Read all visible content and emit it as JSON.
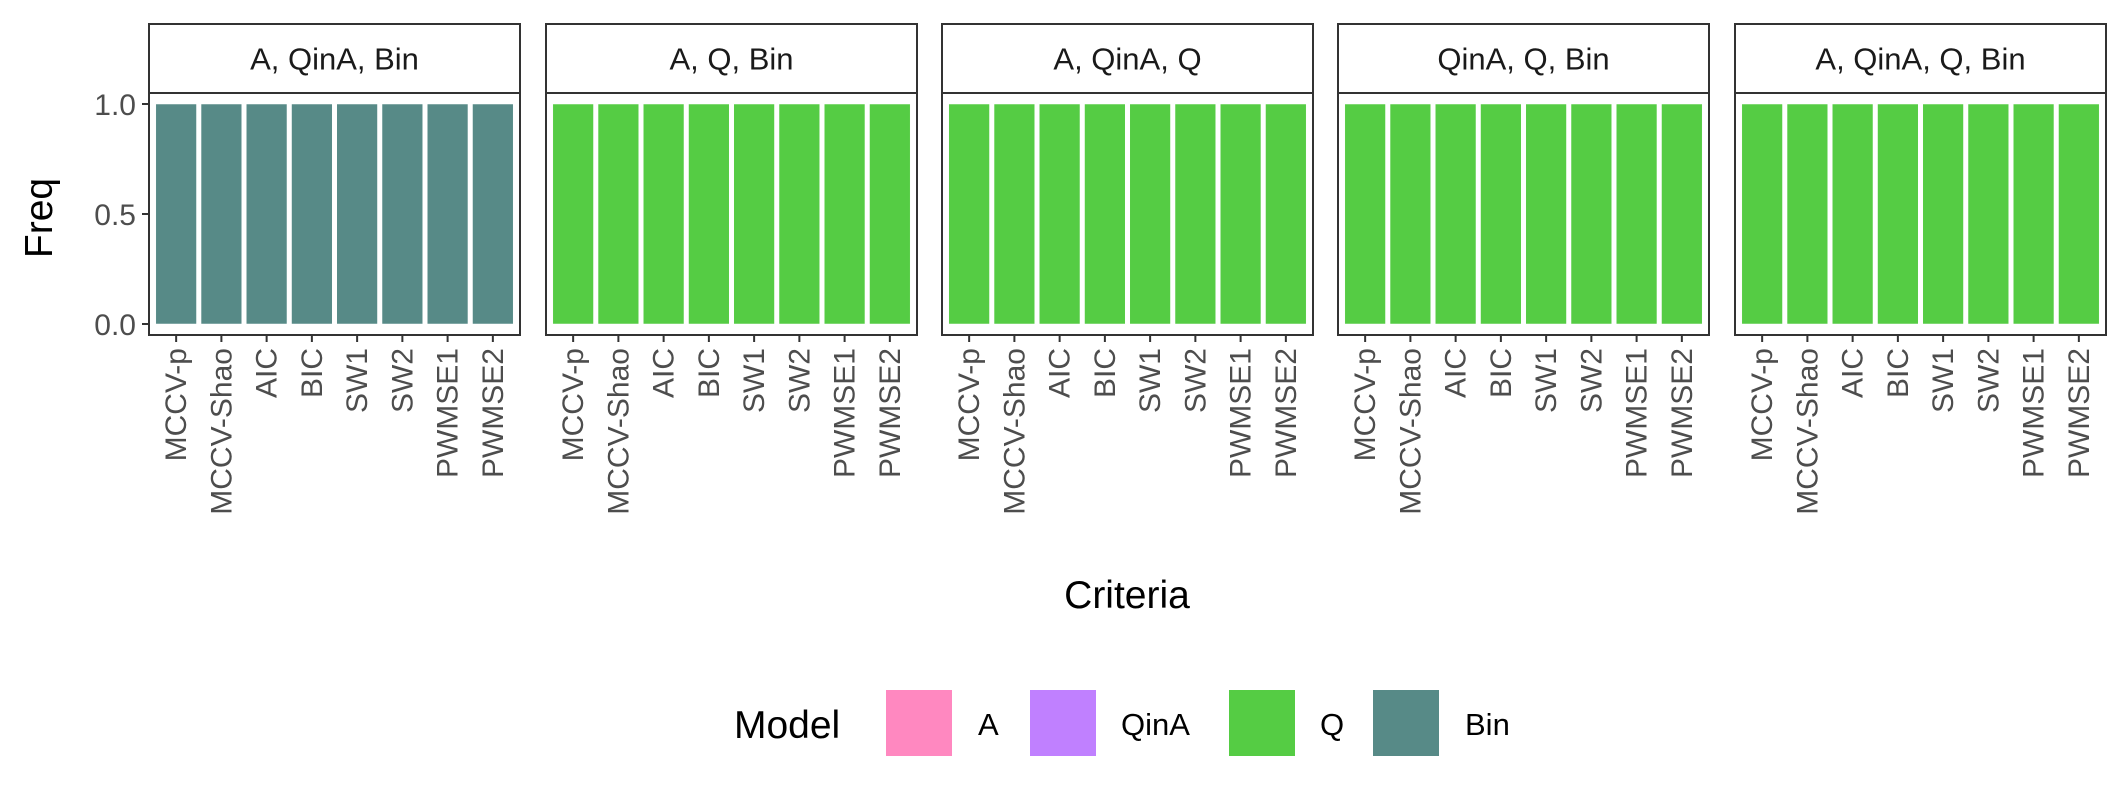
{
  "chart_data": {
    "type": "bar",
    "facets": [
      {
        "title": "A, QinA, Bin",
        "categories": [
          "MCCV-p",
          "MCCV-Shao",
          "AIC",
          "BIC",
          "SW1",
          "SW2",
          "PWMSE1",
          "PWMSE2"
        ],
        "series": [
          {
            "name": "A",
            "values": [
              0,
              0,
              0,
              0,
              0,
              0,
              0,
              0
            ]
          },
          {
            "name": "QinA",
            "values": [
              0,
              0,
              0,
              0,
              0,
              0,
              0,
              0
            ]
          },
          {
            "name": "Q",
            "values": [
              0,
              0,
              0,
              0,
              0,
              0,
              0,
              0
            ]
          },
          {
            "name": "Bin",
            "values": [
              1,
              1,
              1,
              1,
              1,
              1,
              1,
              1
            ]
          }
        ]
      },
      {
        "title": "A, Q, Bin",
        "categories": [
          "MCCV-p",
          "MCCV-Shao",
          "AIC",
          "BIC",
          "SW1",
          "SW2",
          "PWMSE1",
          "PWMSE2"
        ],
        "series": [
          {
            "name": "A",
            "values": [
              0,
              0,
              0,
              0,
              0,
              0,
              0,
              0
            ]
          },
          {
            "name": "QinA",
            "values": [
              0,
              0,
              0,
              0,
              0,
              0,
              0,
              0
            ]
          },
          {
            "name": "Q",
            "values": [
              1,
              1,
              1,
              1,
              1,
              1,
              1,
              1
            ]
          },
          {
            "name": "Bin",
            "values": [
              0,
              0,
              0,
              0,
              0,
              0,
              0,
              0
            ]
          }
        ]
      },
      {
        "title": "A, QinA, Q",
        "categories": [
          "MCCV-p",
          "MCCV-Shao",
          "AIC",
          "BIC",
          "SW1",
          "SW2",
          "PWMSE1",
          "PWMSE2"
        ],
        "series": [
          {
            "name": "A",
            "values": [
              0,
              0,
              0,
              0,
              0,
              0,
              0,
              0
            ]
          },
          {
            "name": "QinA",
            "values": [
              0,
              0,
              0,
              0,
              0,
              0,
              0,
              0
            ]
          },
          {
            "name": "Q",
            "values": [
              1,
              1,
              1,
              1,
              1,
              1,
              1,
              1
            ]
          },
          {
            "name": "Bin",
            "values": [
              0,
              0,
              0,
              0,
              0,
              0,
              0,
              0
            ]
          }
        ]
      },
      {
        "title": "QinA, Q, Bin",
        "categories": [
          "MCCV-p",
          "MCCV-Shao",
          "AIC",
          "BIC",
          "SW1",
          "SW2",
          "PWMSE1",
          "PWMSE2"
        ],
        "series": [
          {
            "name": "A",
            "values": [
              0,
              0,
              0,
              0,
              0,
              0,
              0,
              0
            ]
          },
          {
            "name": "QinA",
            "values": [
              0,
              0,
              0,
              0,
              0,
              0,
              0,
              0
            ]
          },
          {
            "name": "Q",
            "values": [
              1,
              1,
              1,
              1,
              1,
              1,
              1,
              1
            ]
          },
          {
            "name": "Bin",
            "values": [
              0,
              0,
              0,
              0,
              0,
              0,
              0,
              0
            ]
          }
        ]
      },
      {
        "title": "A, QinA, Q, Bin",
        "categories": [
          "MCCV-p",
          "MCCV-Shao",
          "AIC",
          "BIC",
          "SW1",
          "SW2",
          "PWMSE1",
          "PWMSE2"
        ],
        "series": [
          {
            "name": "A",
            "values": [
              0,
              0,
              0,
              0,
              0,
              0,
              0,
              0
            ]
          },
          {
            "name": "QinA",
            "values": [
              0,
              0,
              0,
              0,
              0,
              0,
              0,
              0
            ]
          },
          {
            "name": "Q",
            "values": [
              1,
              1,
              1,
              1,
              1,
              1,
              1,
              1
            ]
          },
          {
            "name": "Bin",
            "values": [
              0,
              0,
              0,
              0,
              0,
              0,
              0,
              0
            ]
          }
        ]
      }
    ],
    "xlabel": "Criteria",
    "ylabel": "Freq",
    "ylim": [
      -0.05,
      1.05
    ],
    "yticks": [
      0.0,
      0.5,
      1.0
    ],
    "ytick_labels": [
      "0.0",
      "0.5",
      "1.0"
    ],
    "stacked": true,
    "grid": false,
    "legend": {
      "title": "Model",
      "position": "bottom",
      "items": [
        {
          "label": "A",
          "color": "#FF88C0"
        },
        {
          "label": "QinA",
          "color": "#C080FF"
        },
        {
          "label": "Q",
          "color": "#55CC44"
        },
        {
          "label": "Bin",
          "color": "#578A87"
        }
      ]
    }
  }
}
